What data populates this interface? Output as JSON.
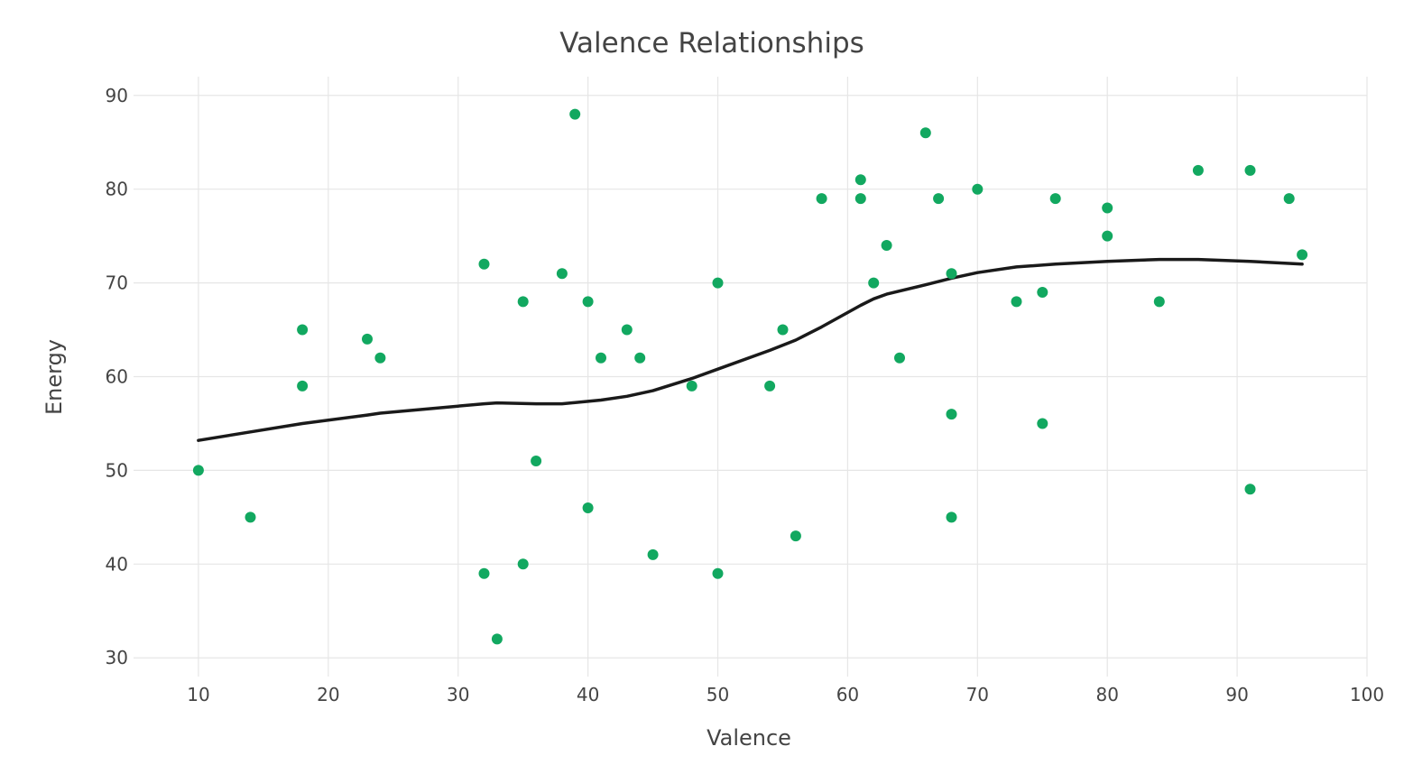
{
  "chart_data": {
    "type": "scatter",
    "title": "Valence Relationships",
    "xlabel": "Valence",
    "ylabel": "Energy",
    "xlim": [
      5,
      100
    ],
    "ylim": [
      28,
      92
    ],
    "xticks": [
      10,
      20,
      30,
      40,
      50,
      60,
      70,
      80,
      90,
      100
    ],
    "yticks": [
      30,
      40,
      50,
      60,
      70,
      80,
      90
    ],
    "grid": true,
    "legend": "none",
    "colors": {
      "points": "#12a860",
      "trend": "#1a1a1a",
      "grid": "#e6e6e6",
      "text": "#444444"
    },
    "series": [
      {
        "type": "scatter",
        "points": [
          [
            10,
            50
          ],
          [
            14,
            45
          ],
          [
            18,
            65
          ],
          [
            18,
            59
          ],
          [
            23,
            64
          ],
          [
            24,
            62
          ],
          [
            32,
            72
          ],
          [
            32,
            39
          ],
          [
            33,
            32
          ],
          [
            35,
            68
          ],
          [
            35,
            40
          ],
          [
            36,
            51
          ],
          [
            38,
            71
          ],
          [
            39,
            88
          ],
          [
            40,
            68
          ],
          [
            40,
            46
          ],
          [
            41,
            62
          ],
          [
            43,
            65
          ],
          [
            44,
            62
          ],
          [
            45,
            41
          ],
          [
            48,
            59
          ],
          [
            50,
            70
          ],
          [
            50,
            39
          ],
          [
            54,
            59
          ],
          [
            55,
            65
          ],
          [
            56,
            43
          ],
          [
            58,
            79
          ],
          [
            61,
            81
          ],
          [
            61,
            79
          ],
          [
            62,
            70
          ],
          [
            63,
            74
          ],
          [
            64,
            62
          ],
          [
            66,
            86
          ],
          [
            67,
            79
          ],
          [
            68,
            71
          ],
          [
            68,
            56
          ],
          [
            68,
            45
          ],
          [
            70,
            80
          ],
          [
            73,
            68
          ],
          [
            75,
            69
          ],
          [
            75,
            55
          ],
          [
            76,
            79
          ],
          [
            80,
            78
          ],
          [
            80,
            75
          ],
          [
            84,
            68
          ],
          [
            87,
            82
          ],
          [
            91,
            82
          ],
          [
            91,
            48
          ],
          [
            94,
            79
          ],
          [
            95,
            73
          ]
        ]
      },
      {
        "type": "line",
        "points": [
          [
            10,
            53.2
          ],
          [
            14,
            54.1
          ],
          [
            18,
            55.0
          ],
          [
            23,
            55.9
          ],
          [
            24,
            56.1
          ],
          [
            32,
            57.1
          ],
          [
            33,
            57.2
          ],
          [
            36,
            57.1
          ],
          [
            38,
            57.1
          ],
          [
            41,
            57.5
          ],
          [
            43,
            57.9
          ],
          [
            45,
            58.5
          ],
          [
            48,
            59.8
          ],
          [
            50,
            60.8
          ],
          [
            54,
            62.8
          ],
          [
            56,
            63.9
          ],
          [
            58,
            65.3
          ],
          [
            61,
            67.6
          ],
          [
            62,
            68.3
          ],
          [
            63,
            68.8
          ],
          [
            66,
            69.8
          ],
          [
            68,
            70.5
          ],
          [
            70,
            71.1
          ],
          [
            73,
            71.7
          ],
          [
            76,
            72.0
          ],
          [
            80,
            72.3
          ],
          [
            84,
            72.5
          ],
          [
            87,
            72.5
          ],
          [
            91,
            72.3
          ],
          [
            95,
            72.0
          ]
        ]
      }
    ]
  }
}
